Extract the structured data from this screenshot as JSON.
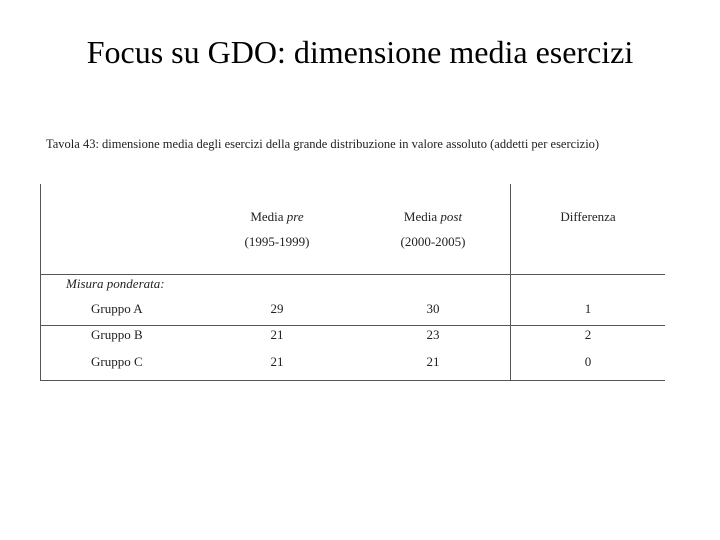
{
  "slide": {
    "title": "Focus su GDO: dimensione media esercizi"
  },
  "caption": {
    "text": "Tavola 43: dimensione media degli esercizi della grande distribuzione in valore assoluto (addetti per esercizio)"
  },
  "table": {
    "columns": [
      {
        "line1_prefix": "Media ",
        "line1_italic": "pre",
        "line2": "(1995-1999)"
      },
      {
        "line1_prefix": "Media ",
        "line1_italic": "post",
        "line2": "(2000-2005)"
      },
      {
        "line1_prefix": "Differenza",
        "line1_italic": "",
        "line2": ""
      }
    ],
    "section_label": "Misura ponderata:",
    "rows": [
      {
        "label": "Gruppo A",
        "pre": "29",
        "post": "30",
        "diff": "1"
      },
      {
        "label": "Gruppo B",
        "pre": "21",
        "post": "23",
        "diff": "2"
      },
      {
        "label": "Gruppo C",
        "pre": "21",
        "post": "21",
        "diff": "0"
      }
    ]
  }
}
